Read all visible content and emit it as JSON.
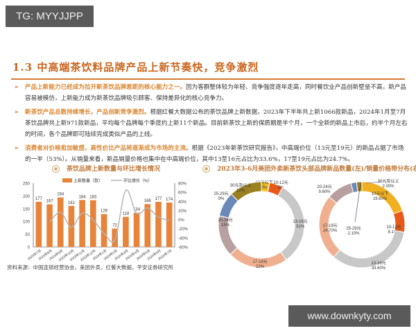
{
  "watermarks": {
    "top": "TG: MYYJJPP",
    "bottom": "www.downkyty.com"
  },
  "section": {
    "title": "1.3 中高端茶饮料品牌产品上新节奏快，竞争激烈"
  },
  "bullets": [
    {
      "highlight": "产品上新能力已经成为拉开新茶饮品牌差距的核心能力之一。",
      "text": "因为客群整体较为年轻、竞争强度逐年走高，同时餐饮业产品创新壁垒不高，新产品容易被模仿，上新能力成为新茶饮品牌吸引顾客、保持差异化的核心竞争力。"
    },
    {
      "highlight": "新茶饮产品总数持续增长，产品创新竞争激烈。",
      "text": "根据红餐大数据公布的茶饮品牌上新数据，2023年下半年共上新1066款新品，2024年1月至7月茶饮品牌共上新971款新品，平均每个品牌每个季度约上新11个新品。目前新茶饮上新的保质期是半个月，一个全新的新品上市后，约半个月左右的时间，各个品牌即可陆续完成类似产品的上线。"
    },
    {
      "highlight": "消费者对价格愈加敏感，高性价比产品将逐渐成为市场的主流。",
      "text": "根据《2023年新茶饮研究报告》，中高端价位（13元至19元）的新品占据了市场的一半（53%）。从销量来看，新品销量价格也集中在中高端价位，其中13至16元占比为33.6%，17至19元占比为24.7%。"
    }
  ],
  "charts": {
    "left_title": "茶饮品牌上新数量与环比增长情况",
    "right_title": "2023年3-6月美团外卖新茶饮头部品牌新品数量(左)/销量价格带分布(右)"
  },
  "source": "资料来源：中国连锁经营协会，美团外卖，红餐大数据，平安证券研究所",
  "chart_data": [
    {
      "type": "bar",
      "title": "茶饮品牌上新数量与环比增长情况",
      "categories": [
        "2023年7月",
        "2023年8月",
        "2023年9月",
        "2023年10月",
        "2023年11月",
        "2023年12月",
        "2024年1月",
        "2024年2月",
        "2024年3月",
        "2024年4月",
        "2024年5月",
        "2024年6月",
        "2024年7月"
      ],
      "series": [
        {
          "name": "上新数量（款）",
          "axis": "left",
          "type": "bar",
          "color": "#e8833a",
          "values": [
            177,
            167,
            194,
            161,
            184,
            183,
            129,
            72,
            118,
            134,
            168,
            177,
            174
          ]
        },
        {
          "name": "环比增长（%）",
          "axis": "right",
          "type": "line",
          "color": "#b5b5b5",
          "values": [
            null,
            -5.6,
            16.2,
            -17.0,
            14.3,
            -0.5,
            -29.5,
            -44.2,
            63.9,
            13.6,
            25.4,
            5.4,
            -1.7
          ]
        }
      ],
      "ylim_left": [
        0,
        250
      ],
      "yticks_left": [
        "0",
        "50",
        "100",
        "150",
        "200",
        "250"
      ],
      "ylim_right": [
        -60,
        80
      ],
      "yticks_right": [
        "-60%",
        "-40%",
        "-20%",
        "0%",
        "20%",
        "40%",
        "60%",
        "80%"
      ],
      "legend_position": "top",
      "grid": false
    },
    {
      "type": "pie",
      "title": "2023年3-6月美团外卖新茶饮头部品牌新品数量(左)",
      "donut": true,
      "labels": [
        "10元以下",
        "10-12元",
        "13-16元",
        "17-19元",
        "20-24元",
        "25-29元",
        "30元及以上"
      ],
      "values": [
        3,
        5,
        31,
        22,
        15,
        9,
        12
      ],
      "value_labels": [
        "3%",
        "5%",
        "31%",
        "22%",
        "15%",
        "9%",
        "12%"
      ],
      "colors": [
        "#f0c028",
        "#e85a1a",
        "#c8c8c8",
        "#f0b090",
        "#b8a0a0",
        "#6a88b8",
        "#9a8020"
      ]
    },
    {
      "type": "pie",
      "title": "2023年3-6月美团外卖新茶饮头部品牌销量价格带分布(右)",
      "donut": true,
      "labels": [
        "10元以下",
        "10-12元",
        "13-16元",
        "17-19元",
        "20-24元",
        "25-29元",
        "30元及以上"
      ],
      "values": [
        19.6,
        8.1,
        33.6,
        24.7,
        9.6,
        2.1,
        2.0
      ],
      "value_labels": [
        "19.60%",
        "8.10%",
        "33.60%",
        "24.70%",
        "9.60%",
        "2.10%",
        "2.00%"
      ],
      "colors": [
        "#f0b020",
        "#e85a1a",
        "#c8c8c8",
        "#f0b090",
        "#b8a0a0",
        "#6a88b8",
        "#9a8020"
      ]
    }
  ]
}
